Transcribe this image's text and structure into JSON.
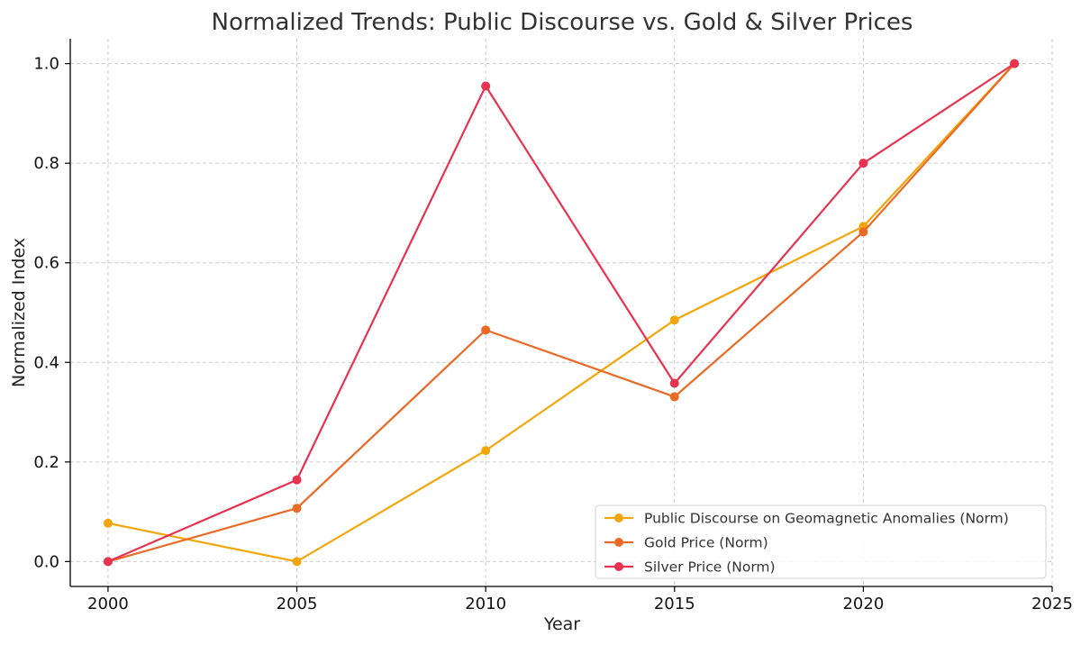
{
  "chart_data": {
    "type": "line",
    "title": "Normalized Trends: Public Discourse vs. Gold & Silver Prices",
    "xlabel": "Year",
    "ylabel": "Normalized Index",
    "xlim": [
      1999,
      2025
    ],
    "ylim": [
      -0.05,
      1.05
    ],
    "x_ticks": [
      2000,
      2005,
      2010,
      2015,
      2020,
      2025
    ],
    "y_ticks": [
      0.0,
      0.2,
      0.4,
      0.6,
      0.8,
      1.0
    ],
    "x_tick_labels": [
      "2000",
      "2005",
      "2010",
      "2015",
      "2020",
      "2025"
    ],
    "y_tick_labels": [
      "0.0",
      "0.2",
      "0.4",
      "0.6",
      "0.8",
      "1.0"
    ],
    "grid": true,
    "legend_position": "bottom-right",
    "x": [
      2000,
      2005,
      2010,
      2015,
      2020,
      2024
    ],
    "series": [
      {
        "name": "Public Discourse on Geomagnetic Anomalies (Norm)",
        "color": "#f2a60c",
        "marker": "circle",
        "values": [
          0.077,
          0.0,
          0.223,
          0.485,
          0.673,
          1.0
        ]
      },
      {
        "name": "Gold Price (Norm)",
        "color": "#ea6a25",
        "marker": "circle",
        "values": [
          0.0,
          0.107,
          0.465,
          0.331,
          0.662,
          1.0
        ]
      },
      {
        "name": "Silver Price (Norm)",
        "color": "#e8324f",
        "marker": "circle",
        "values": [
          0.0,
          0.164,
          0.955,
          0.358,
          0.8,
          1.0
        ]
      }
    ]
  }
}
